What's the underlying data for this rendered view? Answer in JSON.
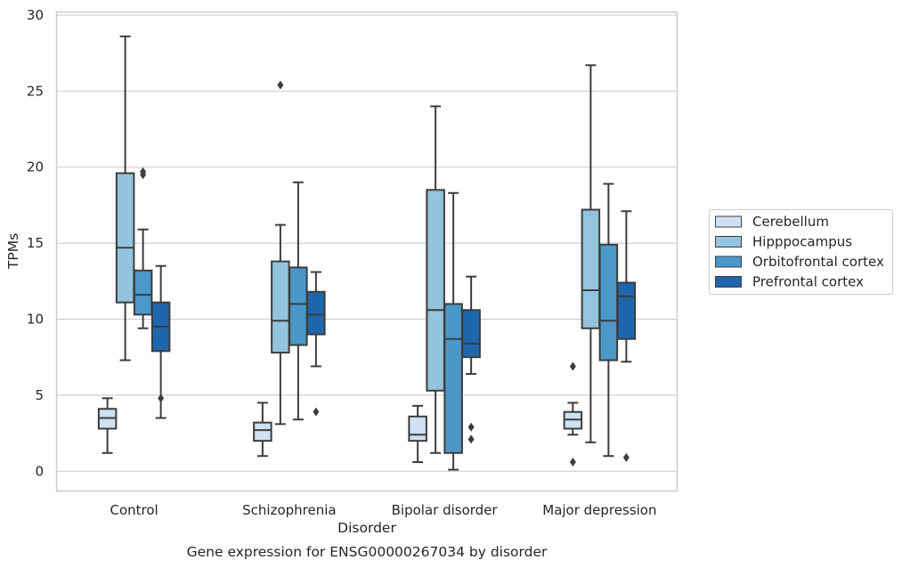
{
  "chart_data": {
    "type": "box",
    "xlabel": "Disorder",
    "ylabel": "TPMs",
    "caption": "Gene expression for ENSG00000267034 by disorder",
    "categories": [
      "Control",
      "Schizophrenia",
      "Bipolar disorder",
      "Major depression"
    ],
    "ylim": [
      -1.3,
      30.2
    ],
    "yticks": [
      0,
      5,
      10,
      15,
      20,
      25,
      30
    ],
    "grid": "horizontal",
    "legend_position": "right",
    "series": [
      {
        "name": "Cerebellum",
        "color": "#cfe1f2",
        "boxes": [
          {
            "whislo": 1.2,
            "q1": 2.8,
            "med": 3.5,
            "q3": 4.1,
            "whishi": 4.8,
            "fliers": []
          },
          {
            "whislo": 1.0,
            "q1": 2.0,
            "med": 2.7,
            "q3": 3.2,
            "whishi": 4.5,
            "fliers": []
          },
          {
            "whislo": 0.6,
            "q1": 2.0,
            "med": 2.4,
            "q3": 3.6,
            "whishi": 4.3,
            "fliers": []
          },
          {
            "whislo": 2.4,
            "q1": 2.8,
            "med": 3.4,
            "q3": 3.9,
            "whishi": 4.5,
            "fliers": [
              0.6,
              6.9
            ]
          }
        ]
      },
      {
        "name": "Hipppocampus",
        "color": "#93c4de",
        "boxes": [
          {
            "whislo": 7.3,
            "q1": 11.1,
            "med": 14.7,
            "q3": 19.6,
            "whishi": 28.6,
            "fliers": []
          },
          {
            "whislo": 3.1,
            "q1": 7.8,
            "med": 9.9,
            "q3": 13.8,
            "whishi": 16.2,
            "fliers": [
              25.4
            ]
          },
          {
            "whislo": 1.2,
            "q1": 5.3,
            "med": 10.6,
            "q3": 18.5,
            "whishi": 24.0,
            "fliers": []
          },
          {
            "whislo": 1.9,
            "q1": 9.4,
            "med": 11.9,
            "q3": 17.2,
            "whishi": 26.7,
            "fliers": []
          }
        ]
      },
      {
        "name": "Orbitofrontal cortex",
        "color": "#4a98c9",
        "boxes": [
          {
            "whislo": 9.4,
            "q1": 10.3,
            "med": 11.6,
            "q3": 13.2,
            "whishi": 15.9,
            "fliers": [
              19.5,
              19.7
            ]
          },
          {
            "whislo": 3.4,
            "q1": 8.3,
            "med": 11.0,
            "q3": 13.4,
            "whishi": 19.0,
            "fliers": []
          },
          {
            "whislo": 0.1,
            "q1": 1.2,
            "med": 8.7,
            "q3": 11.0,
            "whishi": 18.3,
            "fliers": []
          },
          {
            "whislo": 1.0,
            "q1": 7.3,
            "med": 9.9,
            "q3": 14.9,
            "whishi": 18.9,
            "fliers": []
          }
        ]
      },
      {
        "name": "Prefrontal cortex",
        "color": "#1f67ac",
        "boxes": [
          {
            "whislo": 3.5,
            "q1": 7.9,
            "med": 9.5,
            "q3": 11.1,
            "whishi": 13.5,
            "fliers": [
              4.8
            ]
          },
          {
            "whislo": 6.9,
            "q1": 9.0,
            "med": 10.3,
            "q3": 11.8,
            "whishi": 13.1,
            "fliers": [
              3.9
            ]
          },
          {
            "whislo": 6.4,
            "q1": 7.5,
            "med": 8.4,
            "q3": 10.6,
            "whishi": 12.8,
            "fliers": [
              2.1,
              2.9
            ]
          },
          {
            "whislo": 7.2,
            "q1": 8.7,
            "med": 11.5,
            "q3": 12.4,
            "whishi": 17.1,
            "fliers": [
              0.9
            ]
          }
        ]
      }
    ]
  }
}
